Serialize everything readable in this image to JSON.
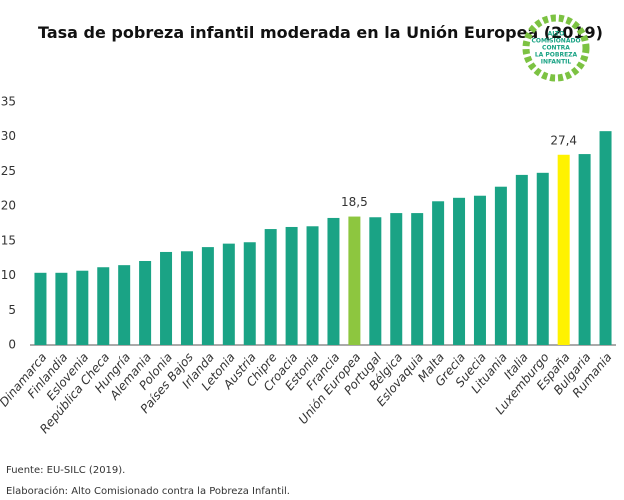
{
  "chart_data": {
    "type": "bar",
    "title": "Tasa de pobreza infantil moderada en la Unión Europea (2019)",
    "categories": [
      "Dinamarca",
      "Finlandia",
      "Eslovenia",
      "República Checa",
      "Hungría",
      "Alemania",
      "Polonia",
      "Países Bajos",
      "Irlanda",
      "Letonia",
      "Austria",
      "Chipre",
      "Croacia",
      "Estonia",
      "Francia",
      "Unión Europea",
      "Portugal",
      "Bélgica",
      "Eslovaquia",
      "Malta",
      "Grecia",
      "Suecia",
      "Lituania",
      "Italia",
      "Luxemburgo",
      "España",
      "Bulgaria",
      "Rumania"
    ],
    "values": [
      10.4,
      10.4,
      10.7,
      11.2,
      11.5,
      12.1,
      13.4,
      13.5,
      14.1,
      14.6,
      14.8,
      16.7,
      17.0,
      17.1,
      18.3,
      18.5,
      18.4,
      19.0,
      19.0,
      20.7,
      21.2,
      21.5,
      22.8,
      24.5,
      24.8,
      27.4,
      27.5,
      30.8
    ],
    "value_labels": [
      null,
      null,
      null,
      null,
      null,
      null,
      null,
      null,
      null,
      null,
      null,
      null,
      null,
      null,
      null,
      "18,5",
      null,
      null,
      null,
      null,
      null,
      null,
      null,
      null,
      null,
      "27,4",
      null,
      null
    ],
    "color": "#1aa385",
    "highlight_colors": {
      "15": "#8dc63f",
      "25": "#fff200"
    },
    "ylim": [
      0,
      35
    ],
    "yticks": [
      0,
      5,
      10,
      15,
      20,
      25,
      30,
      35
    ],
    "grid": false,
    "logo": [
      "ALTO",
      "COMISIONADO",
      "CONTRA",
      "LA POBREZA",
      "INFANTIL"
    ],
    "source": "Fuente: EU-SILC (2019).",
    "credit": "Elaboración: Alto Comisionado contra la Pobreza Infantil."
  }
}
